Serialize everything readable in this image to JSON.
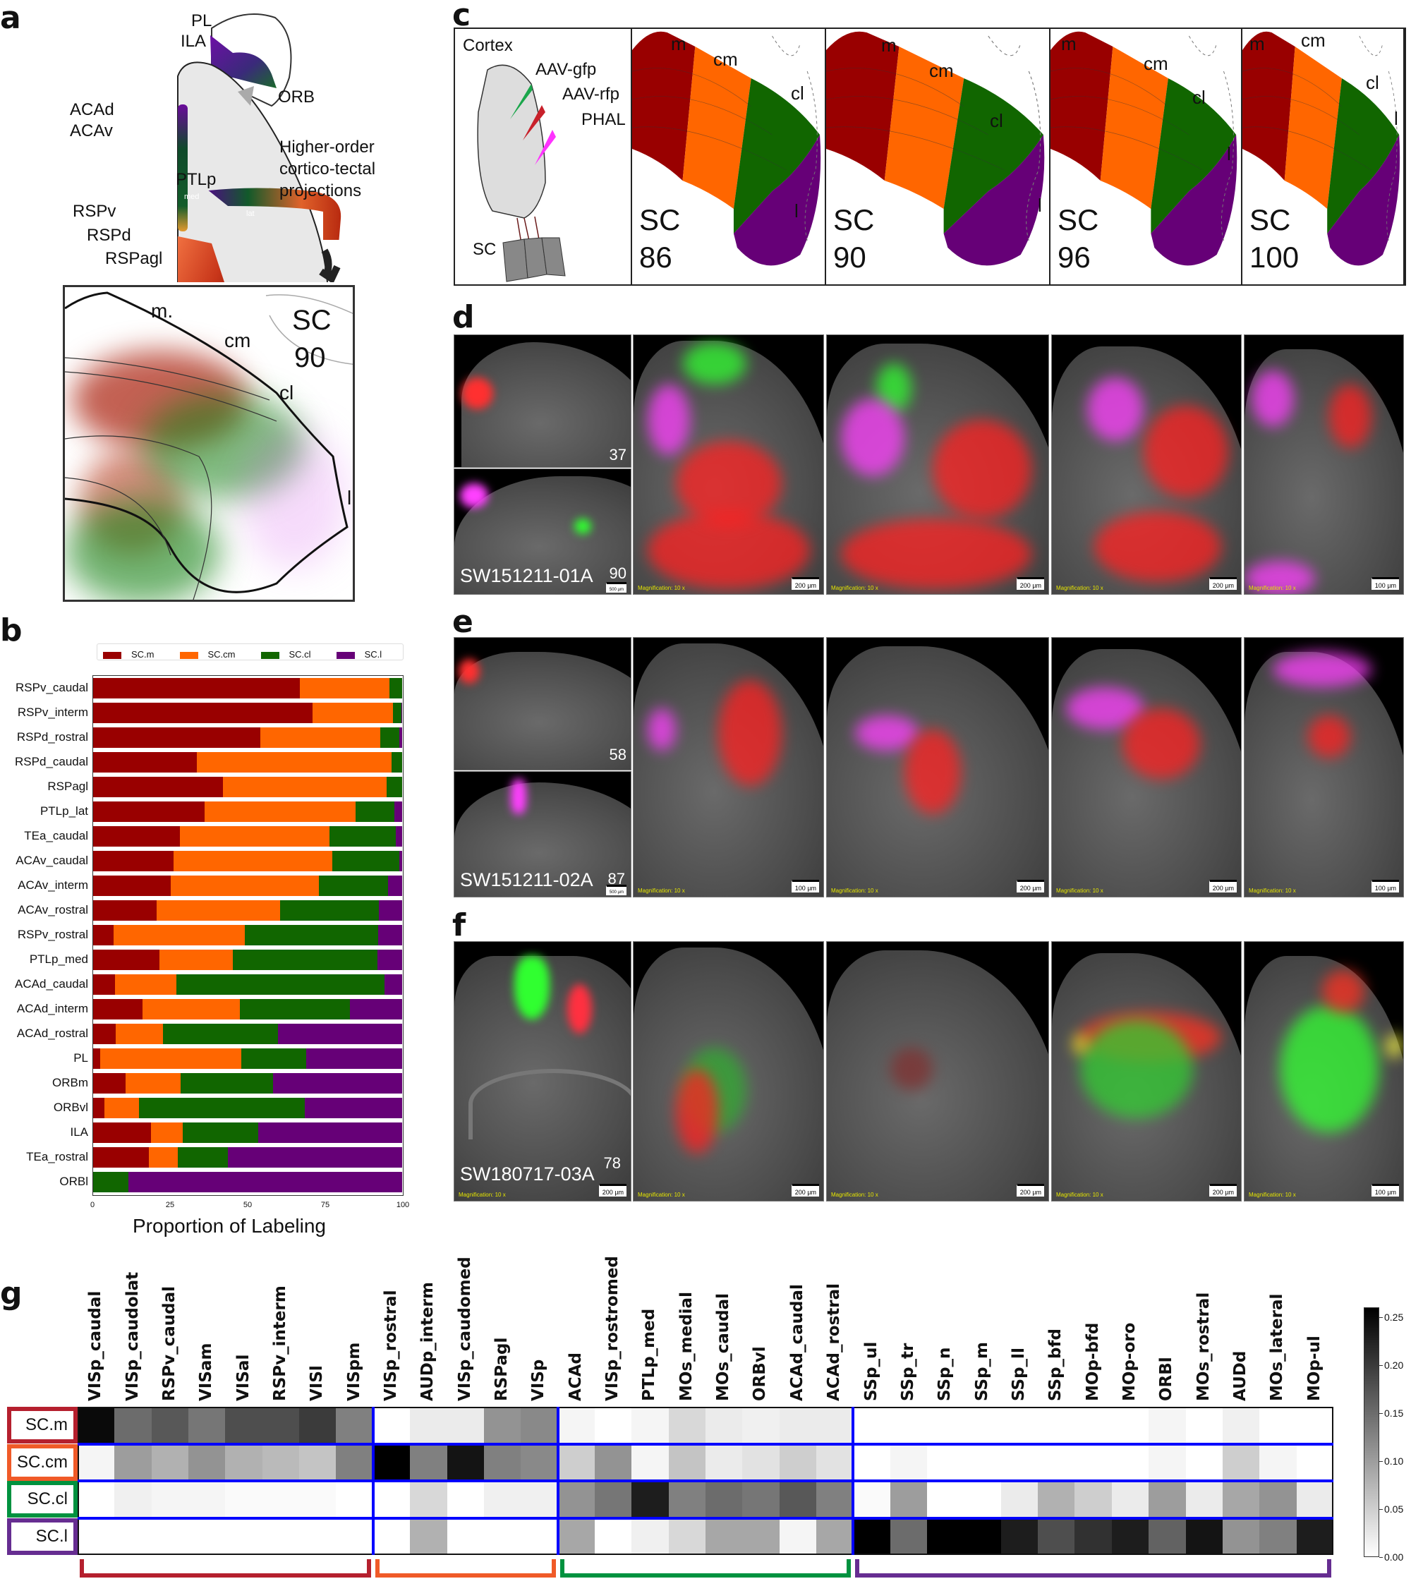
{
  "panel_labels": {
    "a": "a",
    "b": "b",
    "c": "c",
    "d": "d",
    "e": "e",
    "f": "f",
    "g": "g"
  },
  "panel_a": {
    "regions": {
      "PL": "PL",
      "ILA": "ILA",
      "ORB": "ORB",
      "ACAd": "ACAd",
      "ACAv": "ACAv",
      "PTLp": "PTLp",
      "med": "med",
      "lat": "lat",
      "RSPv": "RSPv",
      "RSPd": "RSPd",
      "RSPagl": "RSPagl"
    },
    "caption_lines": [
      "Higher-order",
      "cortico-tectal",
      "projections"
    ],
    "inset": {
      "m": "m.",
      "cm": "cm",
      "cl": "cl",
      "l": "l",
      "sc": "SC",
      "section": "90"
    }
  },
  "panel_c": {
    "cortex": "Cortex",
    "injections": [
      "AAV-gfp",
      "AAV-rfp",
      "PHAL"
    ],
    "sc": "SC",
    "injection_colors": [
      "#1aa64b",
      "#c8202a",
      "#ff33ff"
    ],
    "tiles": [
      {
        "m": "m",
        "cm": "cm",
        "cl": "cl",
        "l": "l",
        "sc": "SC",
        "section": "86"
      },
      {
        "m": "m",
        "cm": "cm",
        "cl": "cl",
        "l": "l",
        "sc": "SC",
        "section": "90"
      },
      {
        "m": "m",
        "cm": "cm",
        "cl": "cl",
        "l": "l",
        "sc": "SC",
        "section": "96"
      },
      {
        "m": "m",
        "cm": "cm",
        "cl": "cl",
        "l": "l",
        "sc": "SC",
        "section": "100"
      }
    ]
  },
  "panel_d": {
    "case": "SW151211-01A",
    "sections": [
      "37",
      "90"
    ],
    "magnification": "Magnification: 10 x",
    "scale_bars": [
      "500 µm",
      "200 µm",
      "200 µm",
      "200 µm",
      "100 µm"
    ]
  },
  "panel_e": {
    "case": "SW151211-02A",
    "sections": [
      "58",
      "87"
    ],
    "magnification": "Magnification: 10 x",
    "scale_bars": [
      "500 µm",
      "100 µm",
      "200 µm",
      "200 µm",
      "100 µm"
    ]
  },
  "panel_f": {
    "case": "SW180717-03A",
    "sections": [
      "78"
    ],
    "magnification": "Magnification: 10 x",
    "scale_bars": [
      "200 µm",
      "200 µm",
      "200 µm",
      "200 µm",
      "100 µm"
    ]
  },
  "chart_data": [
    {
      "type": "bar",
      "stacked": true,
      "orientation": "horizontal",
      "title": "",
      "xlabel": "Proportion of Labeling",
      "ylabel": "",
      "xlim": [
        0,
        100
      ],
      "xticks": [
        "0",
        "25",
        "50",
        "75",
        "100"
      ],
      "legend_placement": "top",
      "categories": [
        "RSPv_caudal",
        "RSPv_interm",
        "RSPd_rostral",
        "RSPd_caudal",
        "RSPagl",
        "PTLp_lat",
        "TEa_caudal",
        "ACAv_caudal",
        "ACAv_interm",
        "ACAv_rostral",
        "RSPv_rostral",
        "PTLp_med",
        "ACAd_caudal",
        "ACAd_interm",
        "ACAd_rostral",
        "PL",
        "ORBm",
        "ORBvl",
        "ILA",
        "TEa_rostral",
        "ORBl"
      ],
      "series": [
        {
          "name": "SC.m",
          "color": "#990000",
          "values": [
            67,
            71,
            54,
            33.5,
            42,
            36,
            28,
            26,
            25,
            20.5,
            6.7,
            21.4,
            7,
            16,
            7.2,
            2.3,
            10.6,
            3.6,
            18.8,
            18.1,
            0
          ]
        },
        {
          "name": "SC.cm",
          "color": "#ff6600",
          "values": [
            29,
            26,
            39,
            63,
            53,
            49,
            48.5,
            51.5,
            48,
            40,
            42.3,
            23.8,
            20,
            31.4,
            15.4,
            45.7,
            17.7,
            11.3,
            10.3,
            9.3,
            0
          ]
        },
        {
          "name": "SC.cl",
          "color": "#116600",
          "values": [
            4,
            2.7,
            6,
            3.5,
            5,
            12.5,
            21.5,
            21.5,
            22.4,
            32,
            43.3,
            46.7,
            67.4,
            35.8,
            37.2,
            21,
            30,
            53.7,
            24.4,
            16.2,
            11.4
          ]
        },
        {
          "name": "SC.l",
          "color": "#660077",
          "values": [
            0,
            0.3,
            1,
            0,
            0,
            2.5,
            2,
            1,
            4.6,
            7.5,
            7.7,
            8.1,
            5.6,
            16.8,
            40.2,
            31,
            41.7,
            31.4,
            46.5,
            56.4,
            88.6
          ]
        }
      ]
    },
    {
      "type": "heatmap",
      "title": "",
      "colormap": "greys",
      "vmin": 0,
      "vmax": 0.26,
      "colorbar_ticks": [
        "0.00",
        "0.05",
        "0.10",
        "0.15",
        "0.20",
        "0.25"
      ],
      "rows": [
        "SC.m",
        "SC.cm",
        "SC.cl",
        "SC.l"
      ],
      "row_colors": [
        "#b5202e",
        "#f05a28",
        "#00923f",
        "#662d91"
      ],
      "columns": [
        "VISp_caudal",
        "VISp_caudolat",
        "RSPv_caudal",
        "VISam",
        "VISal",
        "RSPv_interm",
        "VISl",
        "VISpm",
        "VISp_rostral",
        "AUDp_interm",
        "VISp_caudomed",
        "RSPagl",
        "VISp",
        "ACAd",
        "VISp_rostromed",
        "PTLp_med",
        "MOs_medial",
        "MOs_caudal",
        "ORBvl",
        "ACAd_caudal",
        "ACAd_rostral",
        "SSp_ul",
        "SSp_tr",
        "SSp_n",
        "SSp_m",
        "SSp_ll",
        "SSp_bfd",
        "MOp-bfd",
        "MOp-oro",
        "ORBl",
        "MOs_rostral",
        "AUDd",
        "MOs_lateral",
        "MOp-ul"
      ],
      "column_groups": [
        {
          "row": "SC.m",
          "count": 8
        },
        {
          "row": "SC.cm",
          "count": 5
        },
        {
          "row": "SC.cl",
          "count": 8
        },
        {
          "row": "SC.l",
          "count": 13
        }
      ],
      "values": [
        [
          0.25,
          0.15,
          0.17,
          0.14,
          0.18,
          0.18,
          0.2,
          0.13,
          0,
          0.02,
          0.02,
          0.11,
          0.12,
          0.01,
          0,
          0.01,
          0.04,
          0.02,
          0.015,
          0.02,
          0.02,
          0,
          0,
          0,
          0,
          0,
          0,
          0,
          0,
          0.01,
          0,
          0.015,
          0,
          0
        ],
        [
          0.01,
          0.1,
          0.08,
          0.11,
          0.08,
          0.07,
          0.06,
          0.13,
          0.26,
          0.13,
          0.24,
          0.13,
          0.12,
          0.05,
          0.11,
          0.01,
          0.06,
          0.02,
          0.03,
          0.05,
          0.03,
          0,
          0.01,
          0,
          0,
          0,
          0,
          0,
          0,
          0.01,
          0,
          0.05,
          0.01,
          0
        ],
        [
          0,
          0.015,
          0.01,
          0.01,
          0.005,
          0.005,
          0.005,
          0,
          0,
          0.04,
          0,
          0.015,
          0.015,
          0.11,
          0.14,
          0.23,
          0.13,
          0.15,
          0.14,
          0.17,
          0.13,
          0.005,
          0.1,
          0,
          0,
          0.02,
          0.08,
          0.05,
          0.02,
          0.1,
          0.02,
          0.09,
          0.11,
          0.02
        ],
        [
          0,
          0,
          0,
          0,
          0,
          0,
          0,
          0,
          0,
          0.08,
          0,
          0,
          0,
          0.09,
          0,
          0.015,
          0.04,
          0.09,
          0.09,
          0.01,
          0.09,
          0.26,
          0.15,
          0.26,
          0.26,
          0.23,
          0.18,
          0.21,
          0.23,
          0.16,
          0.24,
          0.11,
          0.13,
          0.23
        ]
      ]
    }
  ]
}
